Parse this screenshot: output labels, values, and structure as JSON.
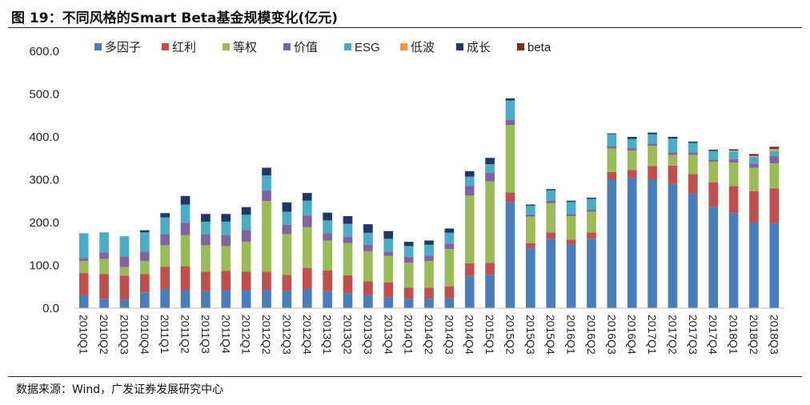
{
  "figure": {
    "title": "图  19：不同风格的Smart Beta基金规模变化(亿元)",
    "source": "数据来源：Wind，广发证券发展研究中心"
  },
  "chart_data": {
    "type": "bar",
    "stacked": true,
    "title": "图  19：不同风格的Smart Beta基金规模变化(亿元)",
    "xlabel": "",
    "ylabel": "",
    "ylim": [
      0,
      600
    ],
    "yticks": [
      "0.0",
      "100.0",
      "200.0",
      "300.0",
      "400.0",
      "500.0",
      "600.0"
    ],
    "grid": false,
    "legend": "top",
    "categories": [
      "2010Q1",
      "2010Q2",
      "2010Q3",
      "2010Q4",
      "2011Q1",
      "2011Q2",
      "2011Q3",
      "2011Q4",
      "2012Q1",
      "2012Q2",
      "2012Q3",
      "2012Q4",
      "2013Q1",
      "2013Q2",
      "2013Q3",
      "2013Q4",
      "2014Q1",
      "2014Q2",
      "2014Q3",
      "2014Q4",
      "2015Q1",
      "2015Q2",
      "2015Q3",
      "2015Q4",
      "2016Q1",
      "2016Q2",
      "2016Q3",
      "2016Q4",
      "2017Q1",
      "2017Q2",
      "2017Q3",
      "2017Q4",
      "2018Q1",
      "2018Q2",
      "2018Q3"
    ],
    "series": [
      {
        "name": "多因子",
        "color": "#4a7ebb",
        "values": [
          30,
          22,
          20,
          37,
          45,
          43,
          40,
          42,
          42,
          42,
          40,
          45,
          40,
          35,
          30,
          25,
          22,
          22,
          23,
          75,
          78,
          248,
          140,
          162,
          148,
          162,
          300,
          305,
          300,
          290,
          268,
          237,
          222,
          200,
          198
        ]
      },
      {
        "name": "红利",
        "color": "#c0504d",
        "values": [
          52,
          58,
          56,
          43,
          52,
          55,
          45,
          45,
          43,
          43,
          38,
          49,
          48,
          42,
          33,
          35,
          26,
          26,
          28,
          30,
          28,
          22,
          12,
          15,
          12,
          15,
          18,
          18,
          32,
          43,
          45,
          57,
          63,
          73,
          82
        ]
      },
      {
        "name": "等权",
        "color": "#9bbb59",
        "values": [
          28,
          35,
          20,
          30,
          50,
          73,
          62,
          58,
          70,
          165,
          95,
          95,
          70,
          75,
          70,
          62,
          58,
          62,
          87,
          158,
          190,
          158,
          62,
          68,
          55,
          48,
          55,
          45,
          47,
          25,
          45,
          48,
          55,
          55,
          58
        ]
      },
      {
        "name": "价值",
        "color": "#8064a2",
        "values": [
          7,
          15,
          25,
          22,
          25,
          28,
          25,
          25,
          28,
          25,
          22,
          27,
          17,
          15,
          15,
          10,
          14,
          13,
          13,
          22,
          20,
          12,
          5,
          6,
          5,
          5,
          5,
          5,
          5,
          6,
          6,
          5,
          8,
          10,
          17
        ]
      },
      {
        "name": "ESG",
        "color": "#4bacc6",
        "values": [
          58,
          47,
          47,
          45,
          40,
          43,
          30,
          32,
          35,
          35,
          30,
          35,
          30,
          30,
          28,
          30,
          25,
          25,
          25,
          22,
          20,
          45,
          20,
          24,
          28,
          25,
          28,
          22,
          22,
          32,
          22,
          20,
          18,
          15,
          12
        ]
      },
      {
        "name": "低波",
        "color": "#f79646",
        "values": [
          0,
          0,
          0,
          0,
          0,
          0,
          0,
          0,
          0,
          0,
          0,
          0,
          0,
          0,
          0,
          0,
          0,
          0,
          0,
          0,
          0,
          0,
          0,
          0,
          0,
          0,
          0,
          0,
          0,
          0,
          0,
          0,
          2,
          3,
          5
        ]
      },
      {
        "name": "成长",
        "color": "#1f3864",
        "values": [
          0,
          0,
          0,
          5,
          10,
          20,
          18,
          18,
          18,
          18,
          22,
          18,
          18,
          18,
          20,
          18,
          10,
          10,
          10,
          13,
          15,
          5,
          3,
          3,
          3,
          3,
          2,
          5,
          4,
          4,
          3,
          3,
          3,
          2,
          2
        ]
      },
      {
        "name": "beta",
        "color": "#7f2a1c",
        "values": [
          0,
          0,
          0,
          0,
          0,
          0,
          0,
          0,
          0,
          0,
          0,
          0,
          0,
          0,
          0,
          0,
          0,
          0,
          0,
          0,
          0,
          0,
          0,
          0,
          0,
          0,
          0,
          0,
          0,
          0,
          0,
          0,
          0,
          2,
          3
        ]
      }
    ]
  }
}
